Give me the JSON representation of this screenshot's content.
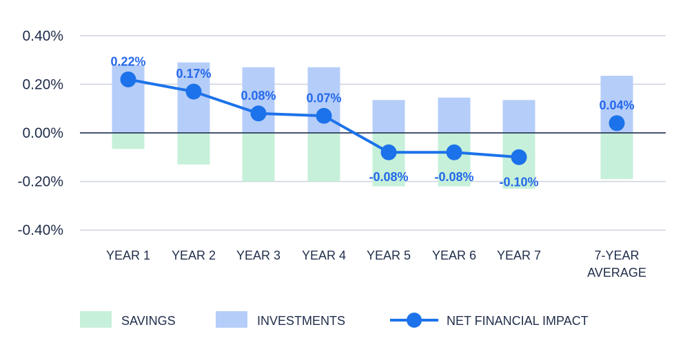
{
  "chart_data": {
    "type": "bar",
    "categories": [
      "YEAR 1",
      "YEAR 2",
      "YEAR 3",
      "YEAR 4",
      "YEAR 5",
      "YEAR 6",
      "YEAR 7",
      "7-YEAR AVERAGE"
    ],
    "series": [
      {
        "name": "SAVINGS",
        "kind": "bar",
        "values": [
          -0.066,
          -0.13,
          -0.2,
          -0.2,
          -0.22,
          -0.22,
          -0.23,
          -0.19
        ],
        "color": "#c6f0d9"
      },
      {
        "name": "INVESTMENTS",
        "kind": "bar",
        "values": [
          0.28,
          0.29,
          0.27,
          0.27,
          0.135,
          0.145,
          0.135,
          0.235
        ],
        "color": "#b5cdf9"
      },
      {
        "name": "NET FINANCIAL IMPACT",
        "kind": "line",
        "values": [
          0.22,
          0.17,
          0.08,
          0.07,
          -0.08,
          -0.08,
          -0.1,
          0.04
        ],
        "color": "#1c72ea"
      }
    ],
    "data_labels": [
      "0.22%",
      "0.17%",
      "0.08%",
      "0.07%",
      "-0.08%",
      "-0.08%",
      "-0.10%",
      "0.04%"
    ],
    "y_ticks": [
      0.4,
      0.2,
      0.0,
      -0.2,
      -0.4
    ],
    "y_tick_labels": [
      "0.40%",
      "0.20%",
      "0.00%",
      "-0.20%",
      "-0.40%"
    ],
    "ylim": [
      -0.4,
      0.4
    ],
    "grid": true,
    "legend_position": "bottom",
    "colors": {
      "grid": "#cdd3dd",
      "zero_line": "#2a3a5c",
      "text": "#1f2d4a",
      "label": "#2468ea"
    }
  }
}
